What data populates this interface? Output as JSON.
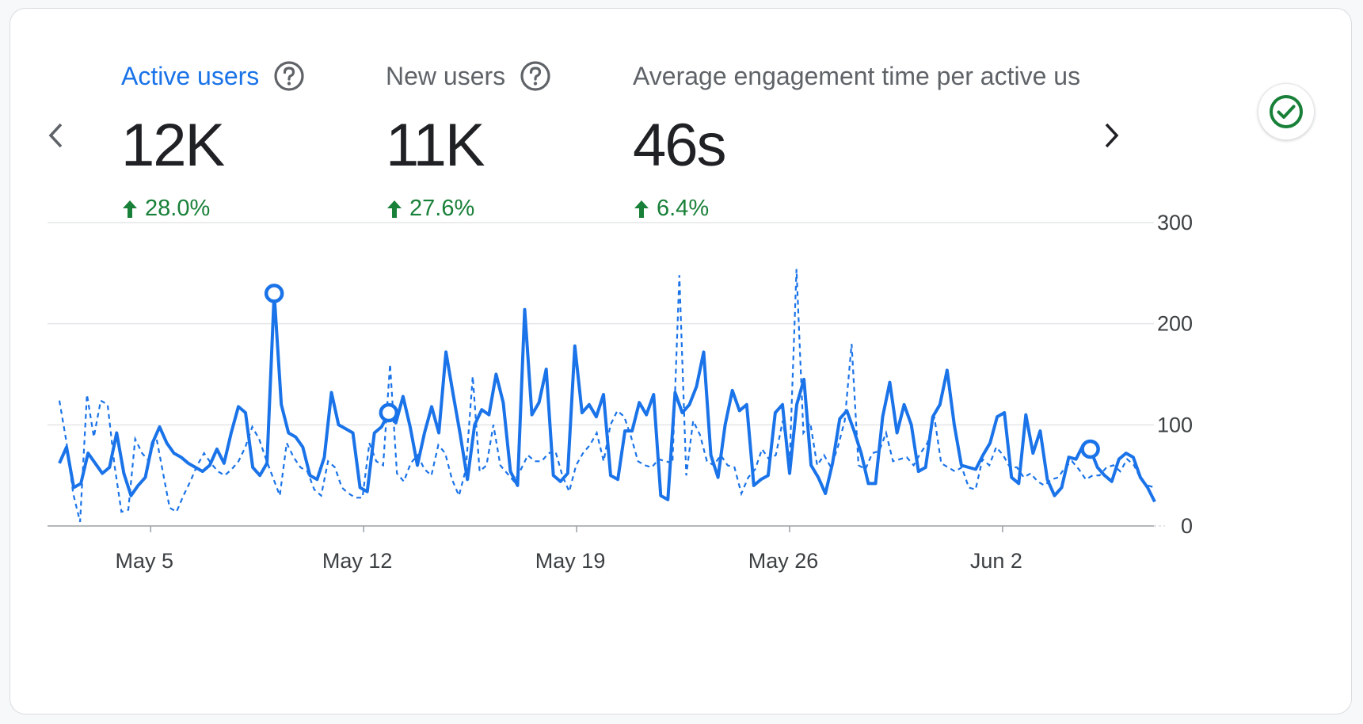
{
  "metrics": [
    {
      "label": "Active users",
      "value": "12K",
      "change": "28.0%",
      "selected": true,
      "help_icon": "help-circle-icon",
      "change_icon": "arrow-up-icon"
    },
    {
      "label": "New users",
      "value": "11K",
      "change": "27.6%",
      "selected": false,
      "help_icon": "help-circle-icon",
      "change_icon": "arrow-up-icon"
    },
    {
      "label": "Average engagement time per active us",
      "value": "46s",
      "change": "6.4%",
      "selected": false
    }
  ],
  "nav": {
    "prev_icon": "chevron-left-icon",
    "next_icon": "chevron-right-icon"
  },
  "status": {
    "icon": "check-circle-icon",
    "color": "#188038"
  },
  "colors": {
    "series": "#1a73e8",
    "positive": "#188038",
    "grid": "#e3e5e8",
    "label_active": "#1a73e8"
  },
  "chart_data": {
    "type": "line",
    "x_start": "May 2",
    "x_end": "Jun 7",
    "x_ticks": [
      "May 5",
      "May 12",
      "May 19",
      "May 26",
      "Jun 2"
    ],
    "y_ticks": [
      "300",
      "200",
      "100",
      "0"
    ],
    "ylim": [
      0,
      300
    ],
    "grid": true,
    "series": [
      {
        "style": "solid",
        "values": [
          62,
          78,
          38,
          42,
          72,
          62,
          52,
          58,
          92,
          52,
          30,
          40,
          48,
          82,
          98,
          82,
          72,
          68,
          62,
          58,
          54,
          60,
          76,
          62,
          92,
          118,
          112,
          58,
          50,
          62,
          230,
          120,
          92,
          88,
          78,
          50,
          46,
          68,
          132,
          100,
          96,
          92,
          38,
          34,
          92,
          98,
          112,
          102,
          128,
          98,
          60,
          92,
          118,
          92,
          172,
          130,
          90,
          46,
          100,
          115,
          110,
          150,
          122,
          54,
          40,
          214,
          110,
          122,
          155,
          50,
          44,
          52,
          178,
          112,
          120,
          108,
          130,
          50,
          46,
          94,
          94,
          122,
          110,
          130,
          30,
          26,
          132,
          112,
          120,
          138,
          172,
          70,
          48,
          100,
          134,
          114,
          120,
          40,
          46,
          50,
          112,
          120,
          52,
          120,
          145,
          60,
          48,
          32,
          62,
          106,
          114,
          94,
          72,
          42,
          42,
          108,
          142,
          92,
          120,
          100,
          54,
          58,
          108,
          120,
          154,
          100,
          60,
          58,
          56,
          70,
          82,
          108,
          112,
          48,
          42,
          110,
          72,
          94,
          46,
          30,
          38,
          68,
          66,
          80,
          76,
          58,
          50,
          44,
          66,
          72,
          68,
          48,
          38,
          24
        ],
        "markers": [
          30,
          46,
          144
        ]
      },
      {
        "style": "dashed",
        "values": [
          124,
          84,
          32,
          4,
          130,
          88,
          124,
          120,
          60,
          14,
          16,
          86,
          72,
          64,
          90,
          54,
          18,
          14,
          30,
          44,
          60,
          72,
          62,
          54,
          50,
          56,
          64,
          78,
          98,
          86,
          66,
          48,
          30,
          82,
          68,
          58,
          54,
          36,
          30,
          64,
          58,
          38,
          32,
          28,
          28,
          82,
          64,
          60,
          160,
          52,
          44,
          62,
          70,
          56,
          50,
          80,
          72,
          46,
          30,
          56,
          148,
          54,
          60,
          100,
          60,
          52,
          44,
          56,
          70,
          64,
          64,
          72,
          74,
          50,
          34,
          60,
          72,
          80,
          92,
          64,
          100,
          114,
          108,
          88,
          64,
          60,
          58,
          66,
          64,
          62,
          248,
          50,
          104,
          90,
          64,
          60,
          70,
          60,
          58,
          32,
          48,
          56,
          76,
          66,
          70,
          104,
          62,
          254,
          92,
          102,
          60,
          70,
          58,
          78,
          104,
          180,
          60,
          56,
          72,
          74,
          92,
          64,
          66,
          68,
          60,
          72,
          82,
          108,
          62,
          58,
          54,
          58,
          38,
          36,
          66,
          60,
          78,
          70,
          58,
          58,
          48,
          52,
          44,
          40,
          46,
          48,
          58,
          64,
          56,
          46,
          50,
          50,
          58,
          60,
          54,
          66,
          60,
          46,
          40,
          38
        ]
      }
    ]
  }
}
